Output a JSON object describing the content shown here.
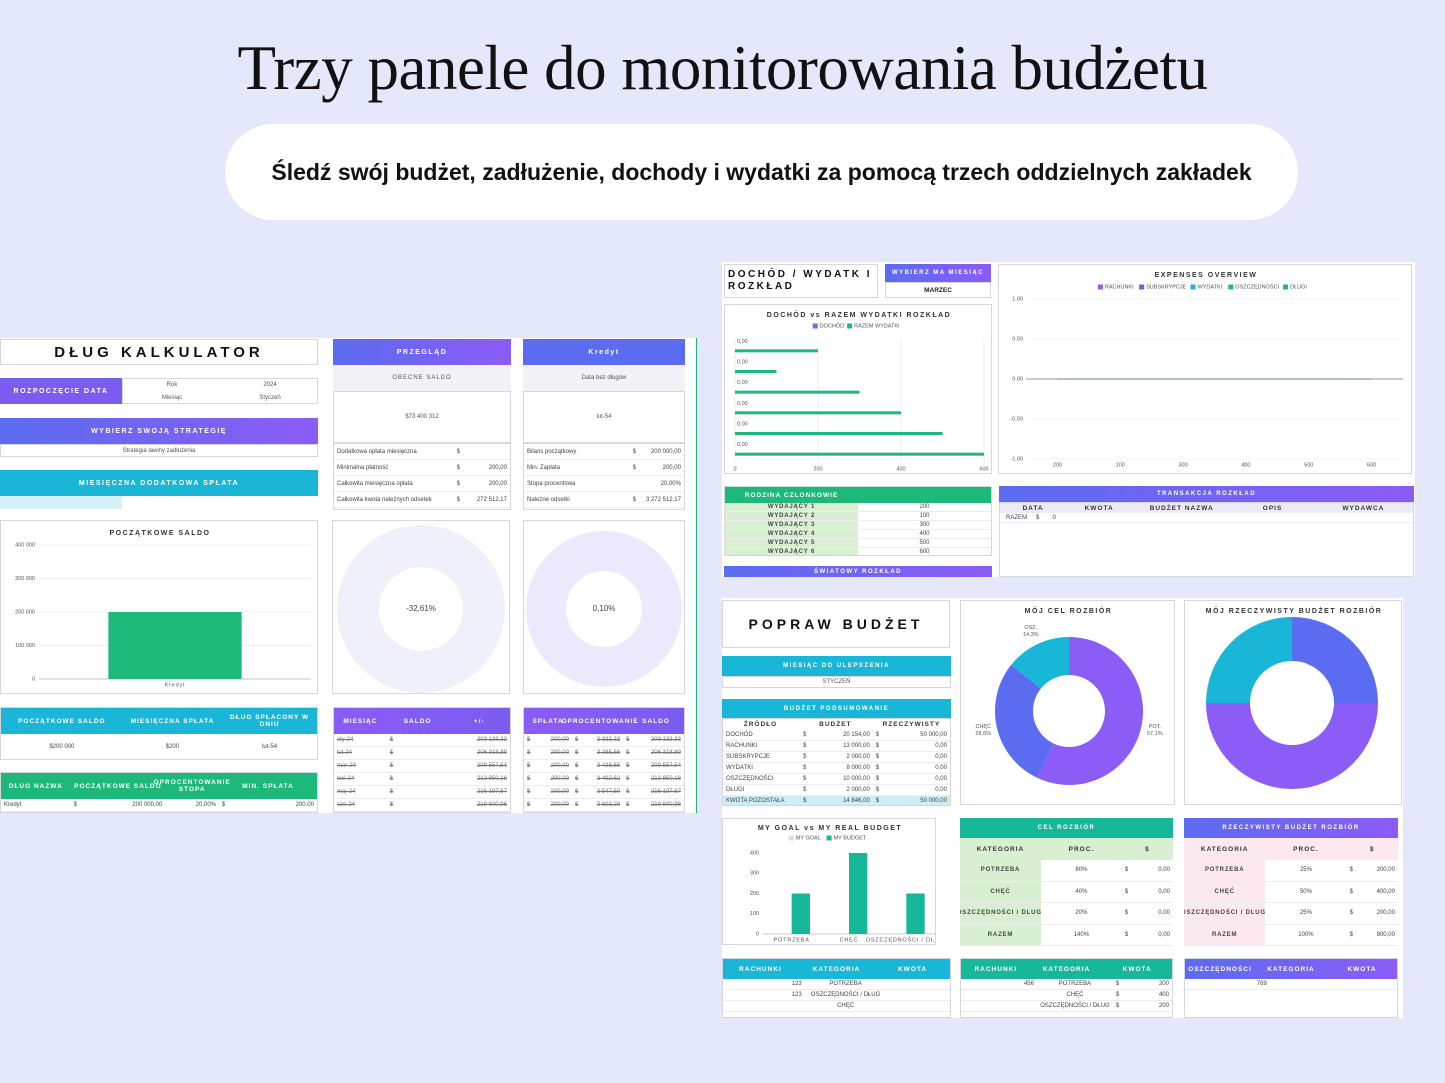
{
  "header": {
    "title": "Trzy panele do monitorowania budżetu",
    "subtitle": "Śledź swój budżet, zadłużenie, dochody i wydatki za pomocą trzech oddzielnych zakładek"
  },
  "debt": {
    "title": "DŁUG KALKULATOR",
    "start_label": "ROZPOCZĘCIE DATA",
    "year_label": "Rok",
    "year": "2024",
    "month_label": "Miesiąc",
    "month": "Styczeń",
    "strategy_label": "WYBIERZ SWOJĄ STRATEGIĘ",
    "strategy": "Strategia lawiny zadłużenia",
    "extra_label": "MIESIĘCZNA DODATKOWA SPŁATA",
    "overview": {
      "title": "PRZEGLĄD",
      "subtitle": "OBECNE SALDO",
      "amount": "$73 400 312",
      "rows": [
        [
          "Dodatkowa opłata miesięczna",
          "$",
          null
        ],
        [
          "Minimalna płatność",
          "$",
          "200,00"
        ],
        [
          "Całkowita miesięczna opłata",
          "$",
          "200,00"
        ],
        [
          "Całkowita kwota należnych odsetek",
          "$",
          "73 272 512,17"
        ]
      ]
    },
    "credit": {
      "title": "Kredyt",
      "subtitle": "Data bez długów",
      "date": "lut-54",
      "rows": [
        [
          "Bilans początkowy",
          "$",
          "200 000,00"
        ],
        [
          "Min. Zapłata",
          "$",
          "200,00"
        ],
        [
          "Stopa procentowa",
          null,
          "20,00%"
        ],
        [
          "Należne odsetki",
          "$",
          "73 272 512,17"
        ]
      ]
    },
    "ring_1": "-32,61%",
    "ring_2": "0,10%",
    "summary": {
      "headers": [
        "POCZĄTKOWE SALDO",
        "MIESIĘCZNA SPŁATA",
        "DŁUG SPŁACONY W DNIU"
      ],
      "rows": [
        [
          "$200 000",
          "$200",
          "lut-54"
        ]
      ]
    },
    "debts": {
      "headers": [
        "DŁUG NAZWA",
        "POCZĄTKOWE SALDO",
        "OPROCENTOWANIE STOPA",
        "MIN. SPŁATA"
      ],
      "rows": [
        [
          "Kredyt",
          "$",
          "200 000,00",
          "20,00%",
          "$",
          "200,00"
        ]
      ]
    },
    "schedule": {
      "headers": [
        "MIESIĄC",
        "SALDO",
        "+/-"
      ],
      "rows": [
        [
          "sty-24",
          "$",
          "203 133,33"
        ],
        [
          "lut-24",
          "$",
          "206 318,89"
        ],
        [
          "mar-24",
          "$",
          "209 557,54"
        ],
        [
          "kwi-24",
          "$",
          "212 850,16"
        ],
        [
          "maj-24",
          "$",
          "216 197,67"
        ],
        [
          "cze-24",
          "$",
          "219 600,96"
        ]
      ]
    },
    "payments": {
      "headers": [
        "SPŁATA",
        "OPROCENTOWANIE",
        "SALDO"
      ],
      "rows": [
        [
          "$",
          "200,00",
          "$",
          "3 333,33",
          "$",
          "203 133,33"
        ],
        [
          "$",
          "200,00",
          "$",
          "3 385,56",
          "$",
          "206 318,89"
        ],
        [
          "$",
          "200,00",
          "$",
          "3 438,65",
          "$",
          "209 557,54"
        ],
        [
          "$",
          "200,00",
          "$",
          "3 492,62",
          "$",
          "212 850,16"
        ],
        [
          "$",
          "200,00",
          "$",
          "3 547,50",
          "$",
          "216 197,67"
        ],
        [
          "$",
          "200,00",
          "$",
          "3 603,29",
          "$",
          "219 600,96"
        ]
      ]
    }
  },
  "income": {
    "title": "DOCHÓD / WYDATK I ROZKŁAD",
    "month_label": "WYBIERZ MA MIESIĄC",
    "month": "MARZEC",
    "members": {
      "headers": [
        "RODZINA CZŁONKOWIE"
      ],
      "rows": [
        [
          "WYDAJĄCY 1",
          "200"
        ],
        [
          "WYDAJĄCY 2",
          "100"
        ],
        [
          "WYDAJĄCY 3",
          "300"
        ],
        [
          "WYDAJĄCY 4",
          "400"
        ],
        [
          "WYDAJĄCY 5",
          "500"
        ],
        [
          "WYDAJĄCY 6",
          "600"
        ]
      ]
    },
    "world_label": "ŚWIATOWY ROZKŁAD",
    "transactions_title": "TRANSAKCJA ROZKŁAD",
    "transactions": {
      "headers": [
        "DATA",
        "KWOTA",
        "BUDŻET NAZWA",
        "OPIS",
        "WYDAWCA"
      ],
      "rows": [
        [
          "RAZEM",
          "$",
          "0",
          null
        ]
      ]
    }
  },
  "improve": {
    "title": "POPRAW BUDŻET",
    "month_label": "MIESIĄC DO ULEPSZENIA",
    "month": "STYCZEŃ",
    "summary_title": "BUDŻET PODSUMOWANIE",
    "summary": {
      "headers": [
        "ŹRÓDŁO",
        "BUDŻET",
        "RZECZYWISTY"
      ],
      "rows": [
        [
          "DOCHÓD",
          "$",
          "20 154,00",
          "$",
          "50 000,00"
        ],
        [
          "RACHUNKI",
          "$",
          "13 000,00",
          "$",
          "0,00"
        ],
        [
          "SUBSKRYPCJE",
          "$",
          "2 000,00",
          "$",
          "0,00"
        ],
        [
          "WYDATKI",
          "$",
          "8 000,00",
          "$",
          "0,00"
        ],
        [
          "OSZCZĘDNOŚCI",
          "$",
          "10 000,00",
          "$",
          "0,00"
        ],
        [
          "DŁUGI",
          "$",
          "2 000,00",
          "$",
          "0,00"
        ],
        [
          "KWOTA POZOSTAŁA",
          "$",
          "14 846,00",
          "$",
          "50 000,00"
        ]
      ]
    },
    "goal_title": "CEL ROZBIÓR",
    "goal": {
      "headers": [
        "KATEGORIA",
        "PROC.",
        "$"
      ],
      "rows": [
        [
          "POTRZEBA",
          "80%",
          "$",
          "0,00"
        ],
        [
          "CHĘĆ",
          "40%",
          "$",
          "0,00"
        ],
        [
          "OSZCZĘDNOŚCI / DLUGI",
          "20%",
          "$",
          "0,00"
        ],
        [
          "RAZEM",
          "140%",
          "$",
          "0,00"
        ]
      ]
    },
    "real_title": "RZECZYWISTY BUDŻET ROZBIÓR",
    "real": {
      "headers": [
        "KATEGORIA",
        "PROC.",
        "$"
      ],
      "rows": [
        [
          "POTRZEBA",
          "25%",
          "$",
          "200,00"
        ],
        [
          "CHĘĆ",
          "50%",
          "$",
          "400,00"
        ],
        [
          "OSZCZĘDNOŚCI / DLUGI",
          "25%",
          "$",
          "200,00"
        ],
        [
          "RAZEM",
          "100%",
          "$",
          "800,00"
        ]
      ]
    },
    "bills": {
      "headers": [
        "RACHUNKI",
        "KATEGORIA",
        "KWOTA"
      ],
      "rows": [
        [
          "123",
          "POTRZEBA"
        ],
        [
          "123",
          "OSZCZĘDNOŚCI / DŁUG"
        ],
        [
          null,
          "CHĘĆ"
        ]
      ]
    },
    "bills_2": {
      "headers": [
        "RACHUNKI",
        "KATEGORIA",
        "KWOTA"
      ],
      "rows": [
        [
          "456",
          "POTRZEBA",
          "$",
          "200"
        ],
        [
          null,
          "CHĘĆ",
          "$",
          "400"
        ],
        [
          null,
          "OSZCZĘDNOŚCI / DŁUG",
          "$",
          "200"
        ]
      ]
    },
    "savings": {
      "headers": [
        "OSZCZĘDNOŚCI",
        "KATEGORIA",
        "KWOTA"
      ],
      "rows": [
        [
          "789"
        ]
      ]
    }
  },
  "chart_data": [
    {
      "type": "bar",
      "title": "POCZĄTKOWE SALDO",
      "categories": [
        "Kredyt"
      ],
      "values": [
        200000
      ],
      "color": "#1db97a",
      "ylim": [
        0,
        400000
      ],
      "yticks": [
        0,
        {
          "value": 100000,
          "label": "100 000"
        },
        {
          "value": 200000,
          "label": "200 000"
        },
        {
          "value": 300000,
          "label": "300 000"
        },
        {
          "value": 400000,
          "label": "400 000"
        }
      ],
      "grid": true
    },
    {
      "type": "hbar",
      "title": "DOCHÓD vs RAZEM WYDATKI ROZKŁAD",
      "series": [
        {
          "name": "DOCHÓD",
          "color": "#8b5cf6",
          "values": [
            0,
            0,
            0,
            0,
            0,
            0
          ],
          "value_labels": [
            "0,00",
            "0,00",
            "0,00",
            "0,00",
            "0,00",
            "0,00"
          ]
        },
        {
          "name": "RAZEM WYDATKI",
          "color": "#1db97a",
          "values": [
            200,
            100,
            300,
            400,
            500,
            600
          ]
        }
      ],
      "xlim": [
        0,
        600
      ],
      "xticks": [
        0,
        200,
        400,
        600
      ],
      "grid": true
    },
    {
      "type": "line",
      "title": "EXPENSES OVERVIEW",
      "categories": [
        "200",
        "100",
        "300",
        "400",
        "500",
        "600"
      ],
      "series": [
        {
          "name": "RACHUNKI",
          "color": "#8b5cf6",
          "values": [
            0,
            0,
            0,
            0,
            0,
            0
          ]
        },
        {
          "name": "SUBSKRYPCJE",
          "color": "#5b6cf0",
          "values": [
            0,
            0,
            0,
            0,
            0,
            0
          ]
        },
        {
          "name": "WYDATKI",
          "color": "#19b6d8",
          "values": [
            0,
            0,
            0,
            0,
            0,
            0
          ]
        },
        {
          "name": "OSZCZĘDNOŚCI",
          "color": "#17b89a",
          "values": [
            0,
            0,
            0,
            0,
            0,
            0
          ]
        },
        {
          "name": "DŁUGI",
          "color": "#1db97a",
          "values": [
            0,
            0,
            0,
            0,
            0,
            0
          ]
        }
      ],
      "ylim": [
        -1,
        1
      ],
      "yticks": [
        {
          "value": 1,
          "label": "1.00"
        },
        {
          "value": 0.5,
          "label": "0.50"
        },
        {
          "value": 0,
          "label": "0.00"
        },
        {
          "value": -0.5,
          "label": "-0.50"
        },
        {
          "value": -1,
          "label": "-1.00"
        }
      ],
      "grid": true
    },
    {
      "type": "pie",
      "title": "MÓJ CEL ROZBIÓR",
      "categories": [
        "POT.",
        "CHĘĆ",
        "OSZ."
      ],
      "values": [
        57.1,
        28.6,
        14.3
      ],
      "value_labels": [
        "57,1%",
        "28,6%",
        "14,3%"
      ],
      "colors": [
        "#8b5cf6",
        "#5b6cf0",
        "#19b6d8"
      ],
      "donut": true
    },
    {
      "type": "pie",
      "title": "MÓJ RZECZYWISTY BUDŻET ROZBIÓR",
      "values": [
        25,
        50,
        25
      ],
      "colors": [
        "#5b6cf0",
        "#8b5cf6",
        "#19b6d8"
      ],
      "donut": true
    },
    {
      "type": "bar",
      "title": "MY GOAL vs MY REAL BUDGET",
      "categories": [
        "POTRZEBA",
        "CHĘĆ",
        "OSZCZĘDNOŚCI / DŁUGI"
      ],
      "series": [
        {
          "name": "MY GOAL",
          "color": "#d9dcf5",
          "values": [
            0,
            0,
            0
          ]
        },
        {
          "name": "MY BUDGET",
          "color": "#17b89a",
          "values": [
            200,
            400,
            200
          ]
        }
      ],
      "ylim": [
        0,
        400
      ],
      "yticks": [
        0,
        100,
        200,
        300,
        400
      ],
      "grid": false
    }
  ]
}
